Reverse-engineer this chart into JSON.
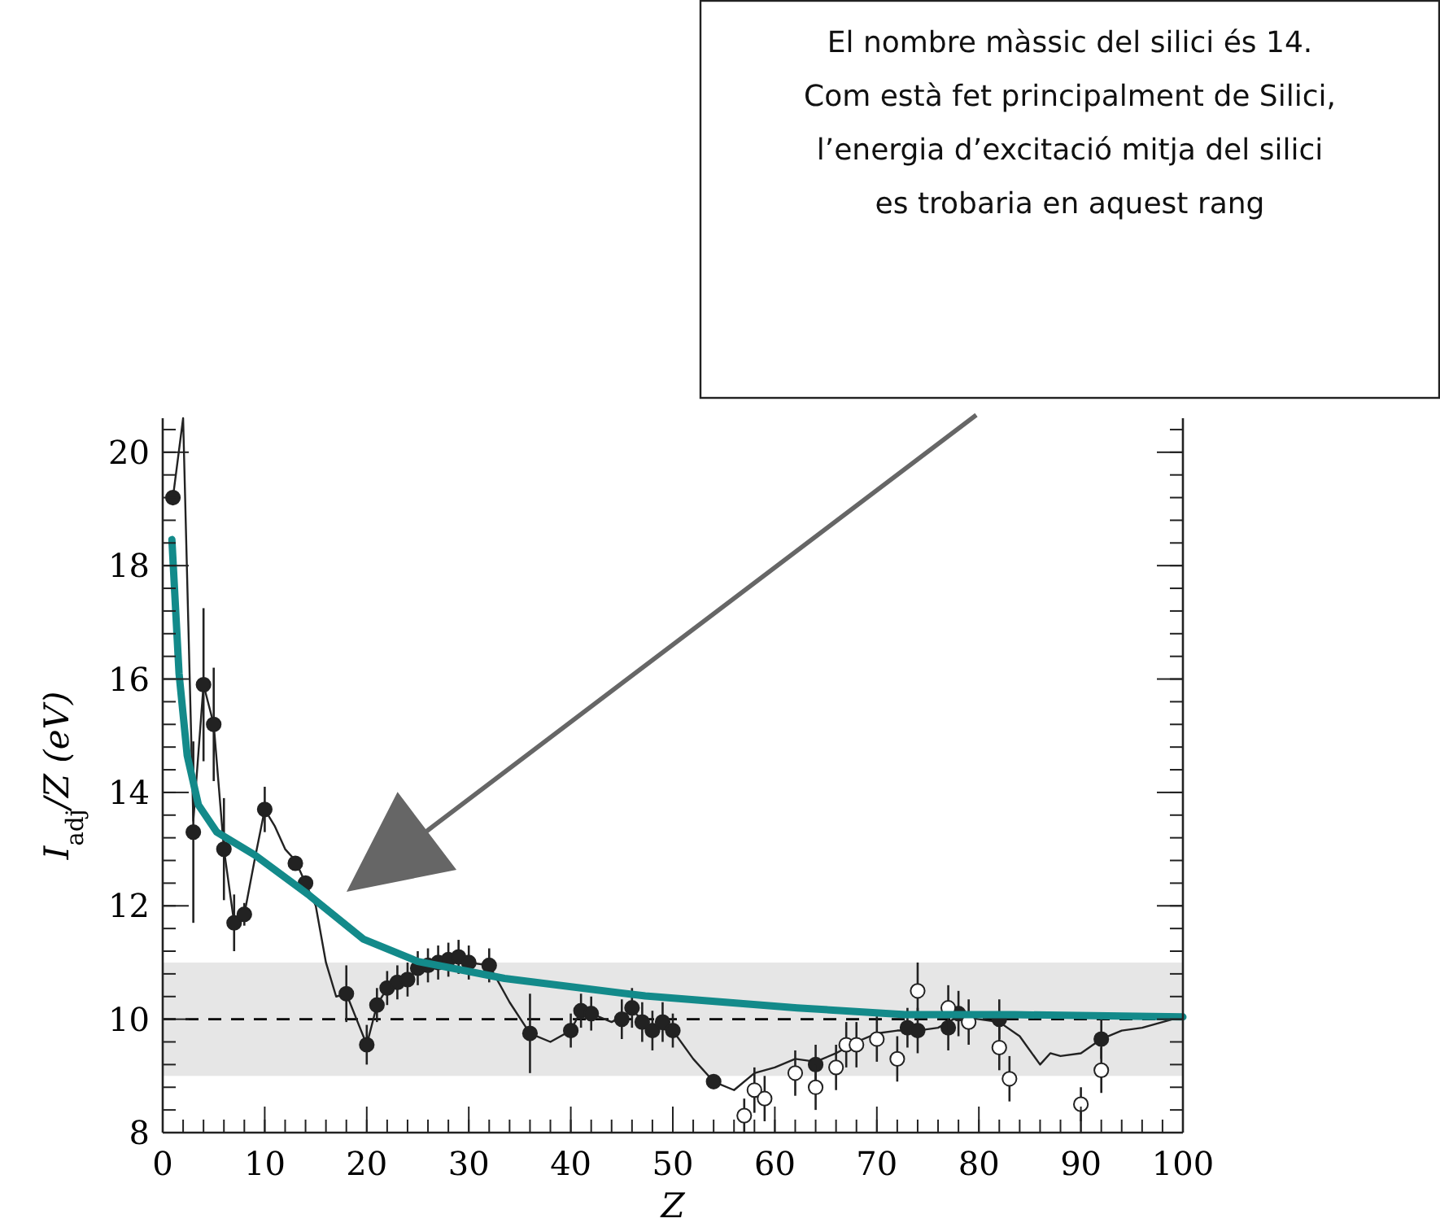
{
  "chart_data": {
    "type": "scatter",
    "xlabel": "Z",
    "ylabel": "I$_{adj}$/Z (eV)",
    "xlim": [
      0,
      100
    ],
    "ylim": [
      8,
      20.6
    ],
    "xticks": [
      0,
      10,
      20,
      30,
      40,
      50,
      60,
      70,
      80,
      90,
      100
    ],
    "yticks": [
      8,
      10,
      12,
      14,
      16,
      18,
      20
    ],
    "grid": false,
    "bands": [
      {
        "axis": "y",
        "from": 9,
        "to": 11,
        "color": "#e6e6e6"
      }
    ],
    "ref_lines": [
      {
        "axis": "y",
        "value": 10,
        "line_style": "dashed",
        "color": "#000000"
      }
    ],
    "annotations": [
      "El nombre màssic del silici és 14. Com està fet principalment de Silici, l’energia d’excitació mitja del silici es trobaria en aquest rang"
    ],
    "series": [
      {
        "type": "line",
        "color": "#222222",
        "marker": "none",
        "x": [
          1,
          2,
          3,
          4,
          5,
          6,
          7,
          8,
          9,
          10,
          11,
          12,
          13,
          14,
          15,
          16,
          17,
          18,
          19,
          20,
          21,
          22,
          24,
          26,
          28,
          30,
          32,
          34,
          36,
          38,
          40,
          41,
          42,
          44,
          46,
          48,
          50,
          52,
          54,
          56,
          58,
          60,
          62,
          64,
          66,
          68,
          70,
          72,
          74,
          76,
          78,
          80,
          82,
          84,
          86,
          87,
          88,
          90,
          92,
          94,
          96,
          98,
          100
        ],
        "values": [
          19.2,
          20.6,
          13.5,
          15.9,
          15.2,
          13.0,
          11.7,
          11.85,
          12.8,
          13.7,
          13.4,
          13.0,
          12.8,
          12.4,
          12.0,
          11.0,
          10.4,
          10.45,
          10.0,
          9.55,
          10.25,
          10.55,
          10.75,
          10.95,
          11.05,
          11.0,
          10.95,
          10.3,
          9.75,
          9.6,
          9.8,
          10.15,
          10.1,
          9.95,
          10.15,
          9.85,
          9.8,
          9.3,
          8.9,
          8.75,
          9.05,
          9.15,
          9.3,
          9.25,
          9.4,
          9.6,
          9.75,
          9.8,
          9.8,
          9.85,
          10.05,
          10.0,
          9.95,
          9.7,
          9.2,
          9.4,
          9.35,
          9.4,
          9.65,
          9.8,
          9.85,
          9.95,
          10.05
        ]
      },
      {
        "color": "#222222",
        "marker": "circle",
        "x": [
          1,
          3,
          4,
          5,
          6,
          7,
          8,
          10,
          13,
          14,
          18,
          20,
          21,
          22,
          23,
          24,
          25,
          26,
          27,
          28,
          29,
          30,
          32,
          36,
          40,
          41,
          42,
          45,
          46,
          47,
          48,
          49,
          50,
          54,
          64,
          73,
          74,
          77,
          78,
          82,
          92
        ],
        "values": [
          19.2,
          13.3,
          15.9,
          15.2,
          13.0,
          11.7,
          11.85,
          13.7,
          12.75,
          12.4,
          10.45,
          9.55,
          10.25,
          10.55,
          10.65,
          10.7,
          10.9,
          10.95,
          11.0,
          11.05,
          11.1,
          11.0,
          10.95,
          9.75,
          9.8,
          10.15,
          10.1,
          10.0,
          10.2,
          9.95,
          9.8,
          9.95,
          9.8,
          8.9,
          9.2,
          9.85,
          9.8,
          9.85,
          10.1,
          10.0,
          9.65
        ],
        "errors": [
          null,
          1.6,
          1.35,
          1.0,
          0.9,
          0.5,
          0.2,
          0.4,
          null,
          null,
          0.5,
          0.35,
          0.3,
          0.3,
          0.3,
          0.3,
          0.3,
          0.3,
          0.3,
          0.3,
          0.3,
          0.3,
          0.3,
          0.7,
          0.3,
          0.3,
          0.3,
          0.35,
          0.35,
          0.35,
          0.35,
          0.35,
          0.3,
          null,
          0.35,
          0.35,
          0.4,
          0.4,
          0.4,
          0.35,
          0.35
        ]
      },
      {
        "color": "#ffffff",
        "marker": "circle",
        "x": [
          57,
          58,
          59,
          62,
          64,
          66,
          67,
          68,
          70,
          72,
          74,
          77,
          79,
          82,
          83,
          90,
          92
        ],
        "values": [
          8.3,
          8.75,
          8.6,
          9.05,
          8.8,
          9.15,
          9.55,
          9.55,
          9.65,
          9.3,
          10.5,
          10.2,
          9.95,
          9.5,
          8.95,
          8.5,
          9.1
        ],
        "errors": [
          0.3,
          0.4,
          0.4,
          0.4,
          0.4,
          0.4,
          0.4,
          0.4,
          0.4,
          0.4,
          0.5,
          0.4,
          0.4,
          0.4,
          0.4,
          0.3,
          0.4
        ]
      },
      {
        "type": "line",
        "color": "#138a8a",
        "marker": "none",
        "x": [
          0.9,
          1.6,
          2.4,
          3.5,
          5.3,
          9,
          14.4,
          19.7,
          25,
          33.5,
          47.3,
          62.2,
          72.8,
          83.5,
          100
        ],
        "values": [
          18.46,
          16.1,
          14.65,
          13.78,
          13.3,
          12.9,
          12.18,
          11.41,
          11.02,
          10.72,
          10.41,
          10.2,
          10.08,
          10.08,
          10.04
        ]
      }
    ]
  }
}
